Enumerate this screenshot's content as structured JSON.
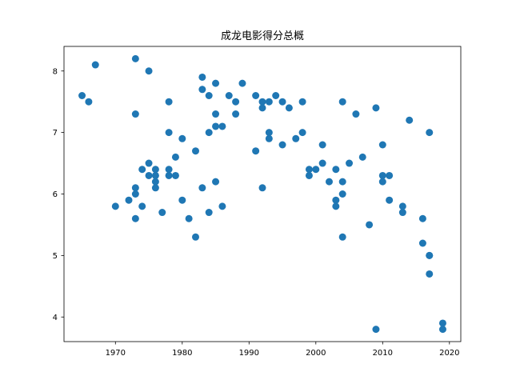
{
  "chart_data": {
    "type": "scatter",
    "title": "成龙电影得分总概",
    "xlabel": "",
    "ylabel": "",
    "xlim": [
      1962.3,
      2021.7
    ],
    "ylim": [
      3.6,
      8.4
    ],
    "xticks": [
      1970,
      1980,
      1990,
      2000,
      2010,
      2020
    ],
    "yticks": [
      4,
      5,
      6,
      7,
      8
    ],
    "grid": false,
    "marker_color": "#1f77b4",
    "points": [
      [
        1965,
        7.6
      ],
      [
        1966,
        7.5
      ],
      [
        1967,
        8.1
      ],
      [
        1970,
        5.8
      ],
      [
        1972,
        5.9
      ],
      [
        1973,
        8.2
      ],
      [
        1973,
        7.3
      ],
      [
        1973,
        6.1
      ],
      [
        1973,
        6.0
      ],
      [
        1973,
        5.6
      ],
      [
        1974,
        6.4
      ],
      [
        1974,
        5.8
      ],
      [
        1975,
        8.0
      ],
      [
        1975,
        6.5
      ],
      [
        1975,
        6.3
      ],
      [
        1976,
        6.4
      ],
      [
        1976,
        6.3
      ],
      [
        1976,
        6.2
      ],
      [
        1976,
        6.1
      ],
      [
        1977,
        5.7
      ],
      [
        1978,
        7.5
      ],
      [
        1978,
        7.0
      ],
      [
        1978,
        6.4
      ],
      [
        1978,
        6.3
      ],
      [
        1979,
        6.6
      ],
      [
        1979,
        6.3
      ],
      [
        1980,
        6.9
      ],
      [
        1980,
        5.9
      ],
      [
        1981,
        5.6
      ],
      [
        1982,
        6.7
      ],
      [
        1982,
        5.3
      ],
      [
        1983,
        7.9
      ],
      [
        1983,
        7.7
      ],
      [
        1983,
        6.1
      ],
      [
        1984,
        7.6
      ],
      [
        1984,
        7.0
      ],
      [
        1984,
        5.7
      ],
      [
        1985,
        7.8
      ],
      [
        1985,
        7.3
      ],
      [
        1985,
        7.1
      ],
      [
        1985,
        6.2
      ],
      [
        1986,
        7.1
      ],
      [
        1986,
        5.8
      ],
      [
        1987,
        7.6
      ],
      [
        1988,
        7.5
      ],
      [
        1988,
        7.3
      ],
      [
        1989,
        7.8
      ],
      [
        1991,
        7.6
      ],
      [
        1991,
        6.7
      ],
      [
        1992,
        7.5
      ],
      [
        1992,
        7.4
      ],
      [
        1992,
        6.1
      ],
      [
        1993,
        7.5
      ],
      [
        1993,
        7.0
      ],
      [
        1993,
        6.9
      ],
      [
        1994,
        7.6
      ],
      [
        1995,
        7.5
      ],
      [
        1995,
        6.8
      ],
      [
        1996,
        7.4
      ],
      [
        1997,
        6.9
      ],
      [
        1998,
        7.5
      ],
      [
        1998,
        7.0
      ],
      [
        1999,
        6.4
      ],
      [
        1999,
        6.3
      ],
      [
        2000,
        6.4
      ],
      [
        2001,
        6.8
      ],
      [
        2001,
        6.5
      ],
      [
        2002,
        6.2
      ],
      [
        2003,
        6.4
      ],
      [
        2003,
        5.9
      ],
      [
        2003,
        5.8
      ],
      [
        2004,
        7.5
      ],
      [
        2004,
        6.2
      ],
      [
        2004,
        6.0
      ],
      [
        2004,
        5.3
      ],
      [
        2005,
        6.5
      ],
      [
        2006,
        7.3
      ],
      [
        2007,
        6.6
      ],
      [
        2008,
        5.5
      ],
      [
        2009,
        7.4
      ],
      [
        2009,
        3.8
      ],
      [
        2010,
        6.8
      ],
      [
        2010,
        6.3
      ],
      [
        2010,
        6.2
      ],
      [
        2011,
        6.3
      ],
      [
        2011,
        5.9
      ],
      [
        2013,
        5.8
      ],
      [
        2013,
        5.7
      ],
      [
        2014,
        7.2
      ],
      [
        2016,
        5.6
      ],
      [
        2016,
        5.2
      ],
      [
        2017,
        7.0
      ],
      [
        2017,
        5.0
      ],
      [
        2017,
        5.0
      ],
      [
        2017,
        4.7
      ],
      [
        2019,
        3.9
      ],
      [
        2019,
        3.8
      ]
    ]
  }
}
